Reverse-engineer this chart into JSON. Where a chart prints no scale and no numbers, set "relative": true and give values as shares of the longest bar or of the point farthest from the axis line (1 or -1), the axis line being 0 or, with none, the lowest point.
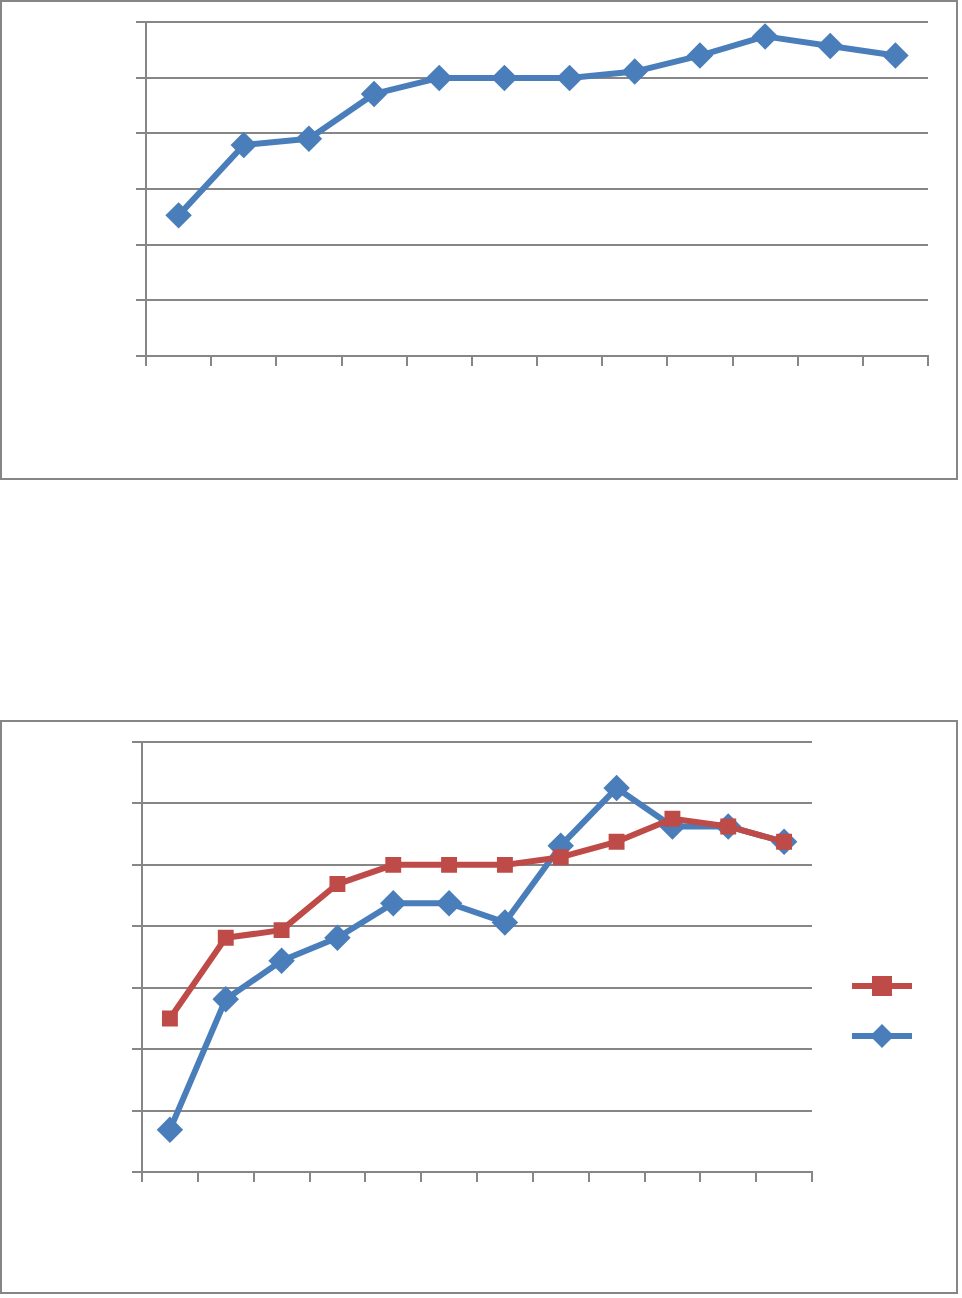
{
  "chart_data": [
    {
      "type": "line",
      "relative": true,
      "categories": [
        null,
        null,
        null,
        null,
        null,
        null,
        null,
        null,
        null,
        null,
        null,
        null
      ],
      "grid": "y",
      "legend": false,
      "marker": "diamond",
      "line_style": "solid",
      "series": [
        {
          "color": "#4a7ebb",
          "values": [
            0.44,
            0.66,
            0.68,
            0.82,
            0.87,
            0.87,
            0.87,
            0.89,
            0.94,
            1,
            0.97,
            0.94
          ]
        }
      ]
    },
    {
      "type": "line",
      "relative": true,
      "categories": [
        null,
        null,
        null,
        null,
        null,
        null,
        null,
        null,
        null,
        null,
        null,
        null
      ],
      "grid": "y",
      "line_style": "solid",
      "series": [
        {
          "color": "#be4b48",
          "marker": "square",
          "values": [
            0.4,
            0.61,
            0.63,
            0.75,
            0.8,
            0.8,
            0.8,
            0.82,
            0.86,
            0.92,
            0.9,
            0.86
          ]
        },
        {
          "color": "#4a7ebb",
          "marker": "diamond",
          "values": [
            0.11,
            0.45,
            0.55,
            0.61,
            0.7,
            0.7,
            0.65,
            0.85,
            1,
            0.9,
            0.9,
            0.86
          ]
        }
      ]
    }
  ]
}
